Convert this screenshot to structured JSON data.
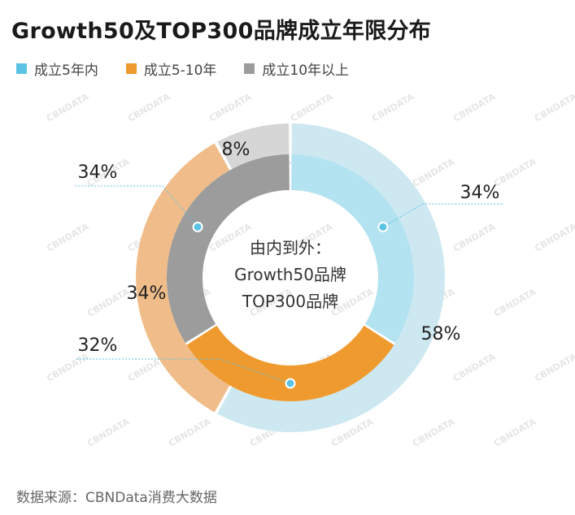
{
  "title": "Growth50及TOP300品牌成立年限分布",
  "legend": [
    {
      "label": "成立5年内",
      "color": "#5bc3e4"
    },
    {
      "label": "成立5-10年",
      "color": "#ee9a2e"
    },
    {
      "label": "成立10年以上",
      "color": "#9c9c9c"
    }
  ],
  "center_text": {
    "line1": "由内到外：",
    "line2": "Growth50品牌",
    "line3": "TOP300品牌"
  },
  "source": "数据来源：CBNData消费大数据",
  "watermark": "CBNDATA",
  "chart_data": {
    "type": "pie",
    "subtype": "nested-donut",
    "categories": [
      "成立5年内",
      "成立5-10年",
      "成立10年以上"
    ],
    "series": [
      {
        "name": "Growth50品牌",
        "values": [
          34,
          32,
          34
        ]
      },
      {
        "name": "TOP300品牌",
        "values": [
          58,
          34,
          8
        ]
      }
    ],
    "labels": {
      "inner": [
        "34%",
        "32%",
        "34%"
      ],
      "outer": [
        "58%",
        "34%",
        "8%"
      ]
    },
    "colors": {
      "inner": [
        "#b3e2f0",
        "#ee9a2e",
        "#9c9c9c"
      ],
      "outer": [
        "#cde8f1",
        "#f0bd8a",
        "#d6d6d6"
      ]
    },
    "legend_position": "top-left"
  }
}
